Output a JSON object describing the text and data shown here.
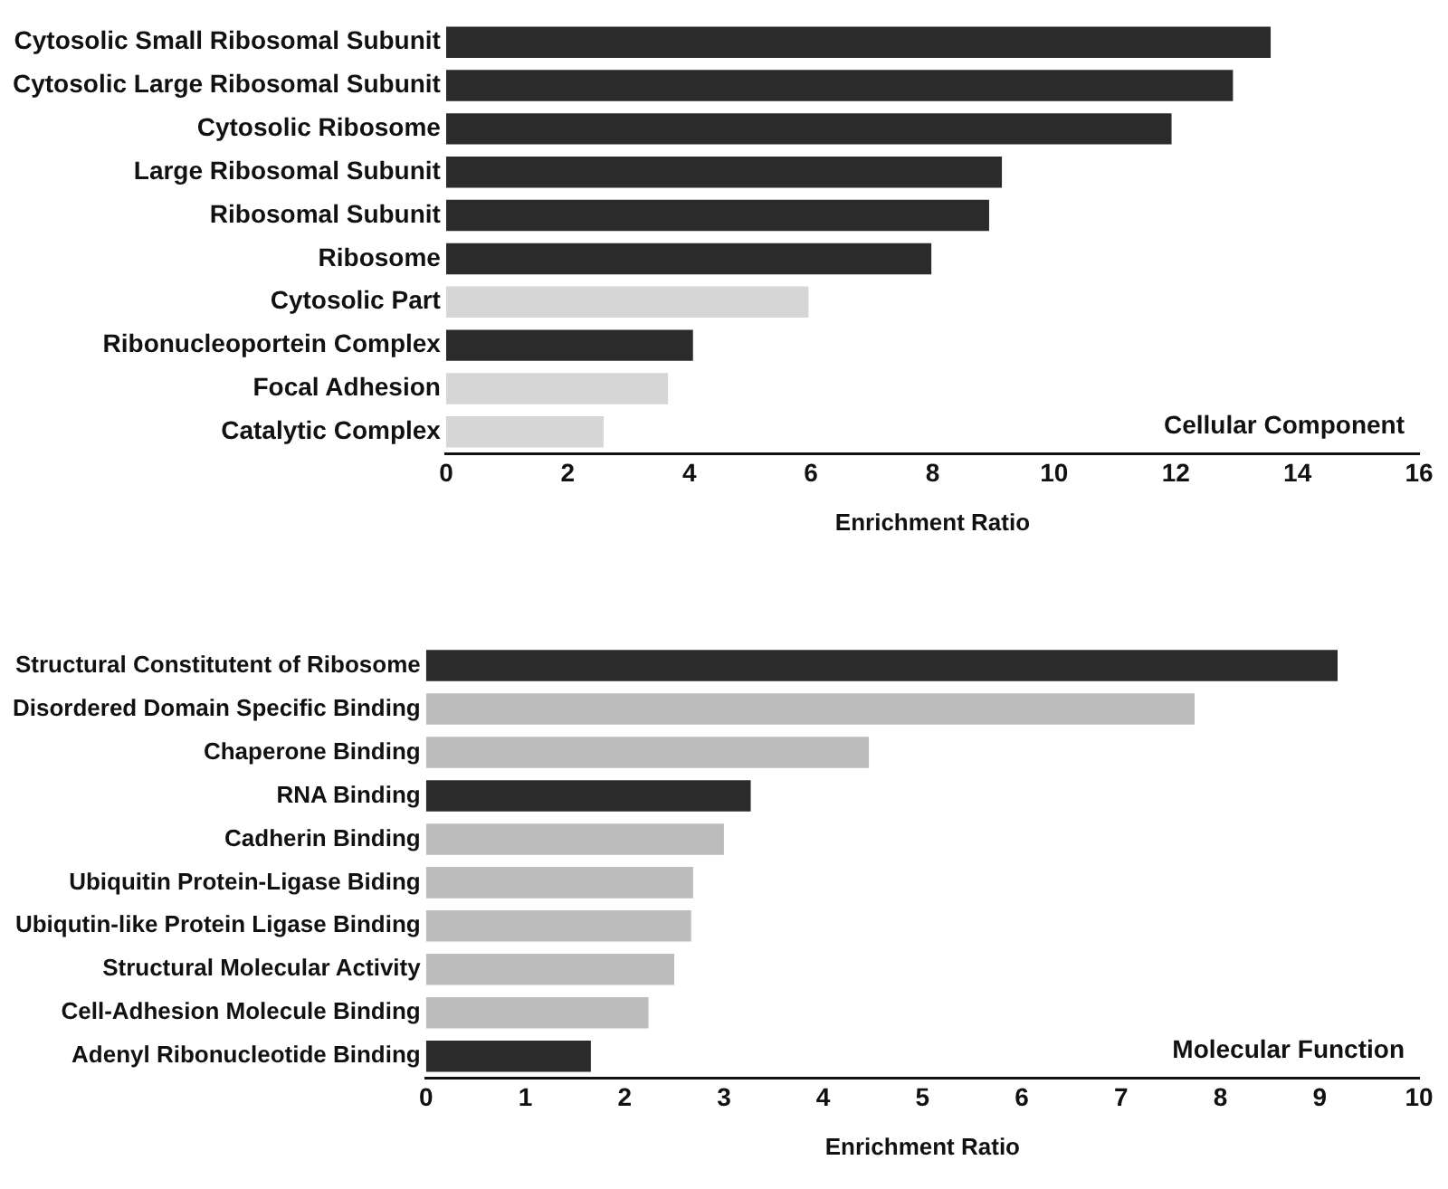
{
  "chart_data": [
    {
      "type": "bar",
      "orientation": "horizontal",
      "xlabel": "Enrichment Ratio",
      "categories": [
        "Cytosolic Small Ribosomal Subunit",
        "Cytosolic Large Ribosomal Subunit",
        "Cytosolic Ribosome",
        "Large Ribosomal Subunit",
        "Ribosomal Subunit",
        "Ribosome",
        "Cytosolic Part",
        "Ribonucleoportein Complex",
        "Focal Adhesion",
        "Catalytic Complex"
      ],
      "values": [
        13.56,
        12.94,
        11.93,
        9.14,
        8.93,
        7.98,
        5.96,
        4.06,
        3.65,
        2.59
      ],
      "colors": [
        "#2b2b2b",
        "#2b2b2b",
        "#2b2b2b",
        "#2b2b2b",
        "#2b2b2b",
        "#2b2b2b",
        "#d6d6d6",
        "#2b2b2b",
        "#d6d6d6",
        "#d6d6d6"
      ],
      "xlim": [
        0,
        16
      ],
      "xticks": [
        0,
        2,
        4,
        6,
        8,
        10,
        12,
        14,
        16
      ],
      "grid": false,
      "legend": false,
      "annotations": [
        "Cellular Component"
      ]
    },
    {
      "type": "bar",
      "orientation": "horizontal",
      "xlabel": "Enrichment Ratio",
      "categories": [
        "Structural Constitutent of Ribosome",
        "Disordered Domain Specific Binding",
        "Chaperone Binding",
        "RNA Binding",
        "Cadherin Binding",
        "Ubiquitin Protein-Ligase Biding",
        "Ubiqutin-like Protein Ligase Binding",
        "Structural Molecular Activity",
        "Cell-Adhesion Molecule Binding",
        "Adenyl Ribonucleotide Binding"
      ],
      "values": [
        9.18,
        7.74,
        4.46,
        3.27,
        3.0,
        2.69,
        2.67,
        2.5,
        2.24,
        1.66
      ],
      "colors": [
        "#2b2b2b",
        "#bcbcbc",
        "#bcbcbc",
        "#2b2b2b",
        "#bcbcbc",
        "#bcbcbc",
        "#bcbcbc",
        "#bcbcbc",
        "#bcbcbc",
        "#2b2b2b"
      ],
      "xlim": [
        0,
        10
      ],
      "xticks": [
        0,
        1,
        2,
        3,
        4,
        5,
        6,
        7,
        8,
        9,
        10
      ],
      "grid": false,
      "legend": false,
      "annotations": [
        "Molecular Function"
      ]
    }
  ]
}
